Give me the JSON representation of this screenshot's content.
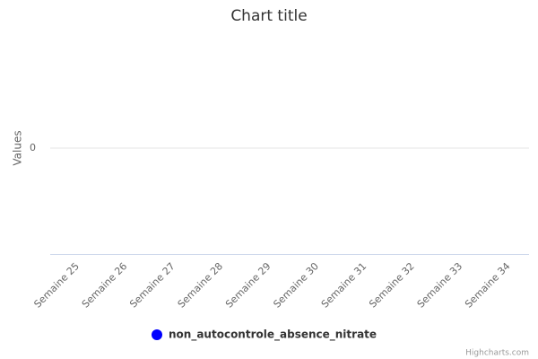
{
  "chart_data": {
    "type": "line",
    "title": "Chart title",
    "y_label": "Values",
    "categories": [
      "Semaine 25",
      "Semaine 26",
      "Semaine 27",
      "Semaine 28",
      "Semaine 29",
      "Semaine 30",
      "Semaine 31",
      "Semaine 32",
      "Semaine 33",
      "Semaine 34"
    ],
    "series": [
      {
        "name": "non_autocontrole_absence_nitrate",
        "color": "#0000ff",
        "values": [
          null,
          null,
          null,
          null,
          null,
          null,
          null,
          null,
          null,
          null
        ]
      }
    ],
    "ylim": [
      -1,
      1
    ],
    "yticks": [
      0
    ],
    "grid": true,
    "legend": "bottom",
    "credits": "Highcharts.com"
  }
}
